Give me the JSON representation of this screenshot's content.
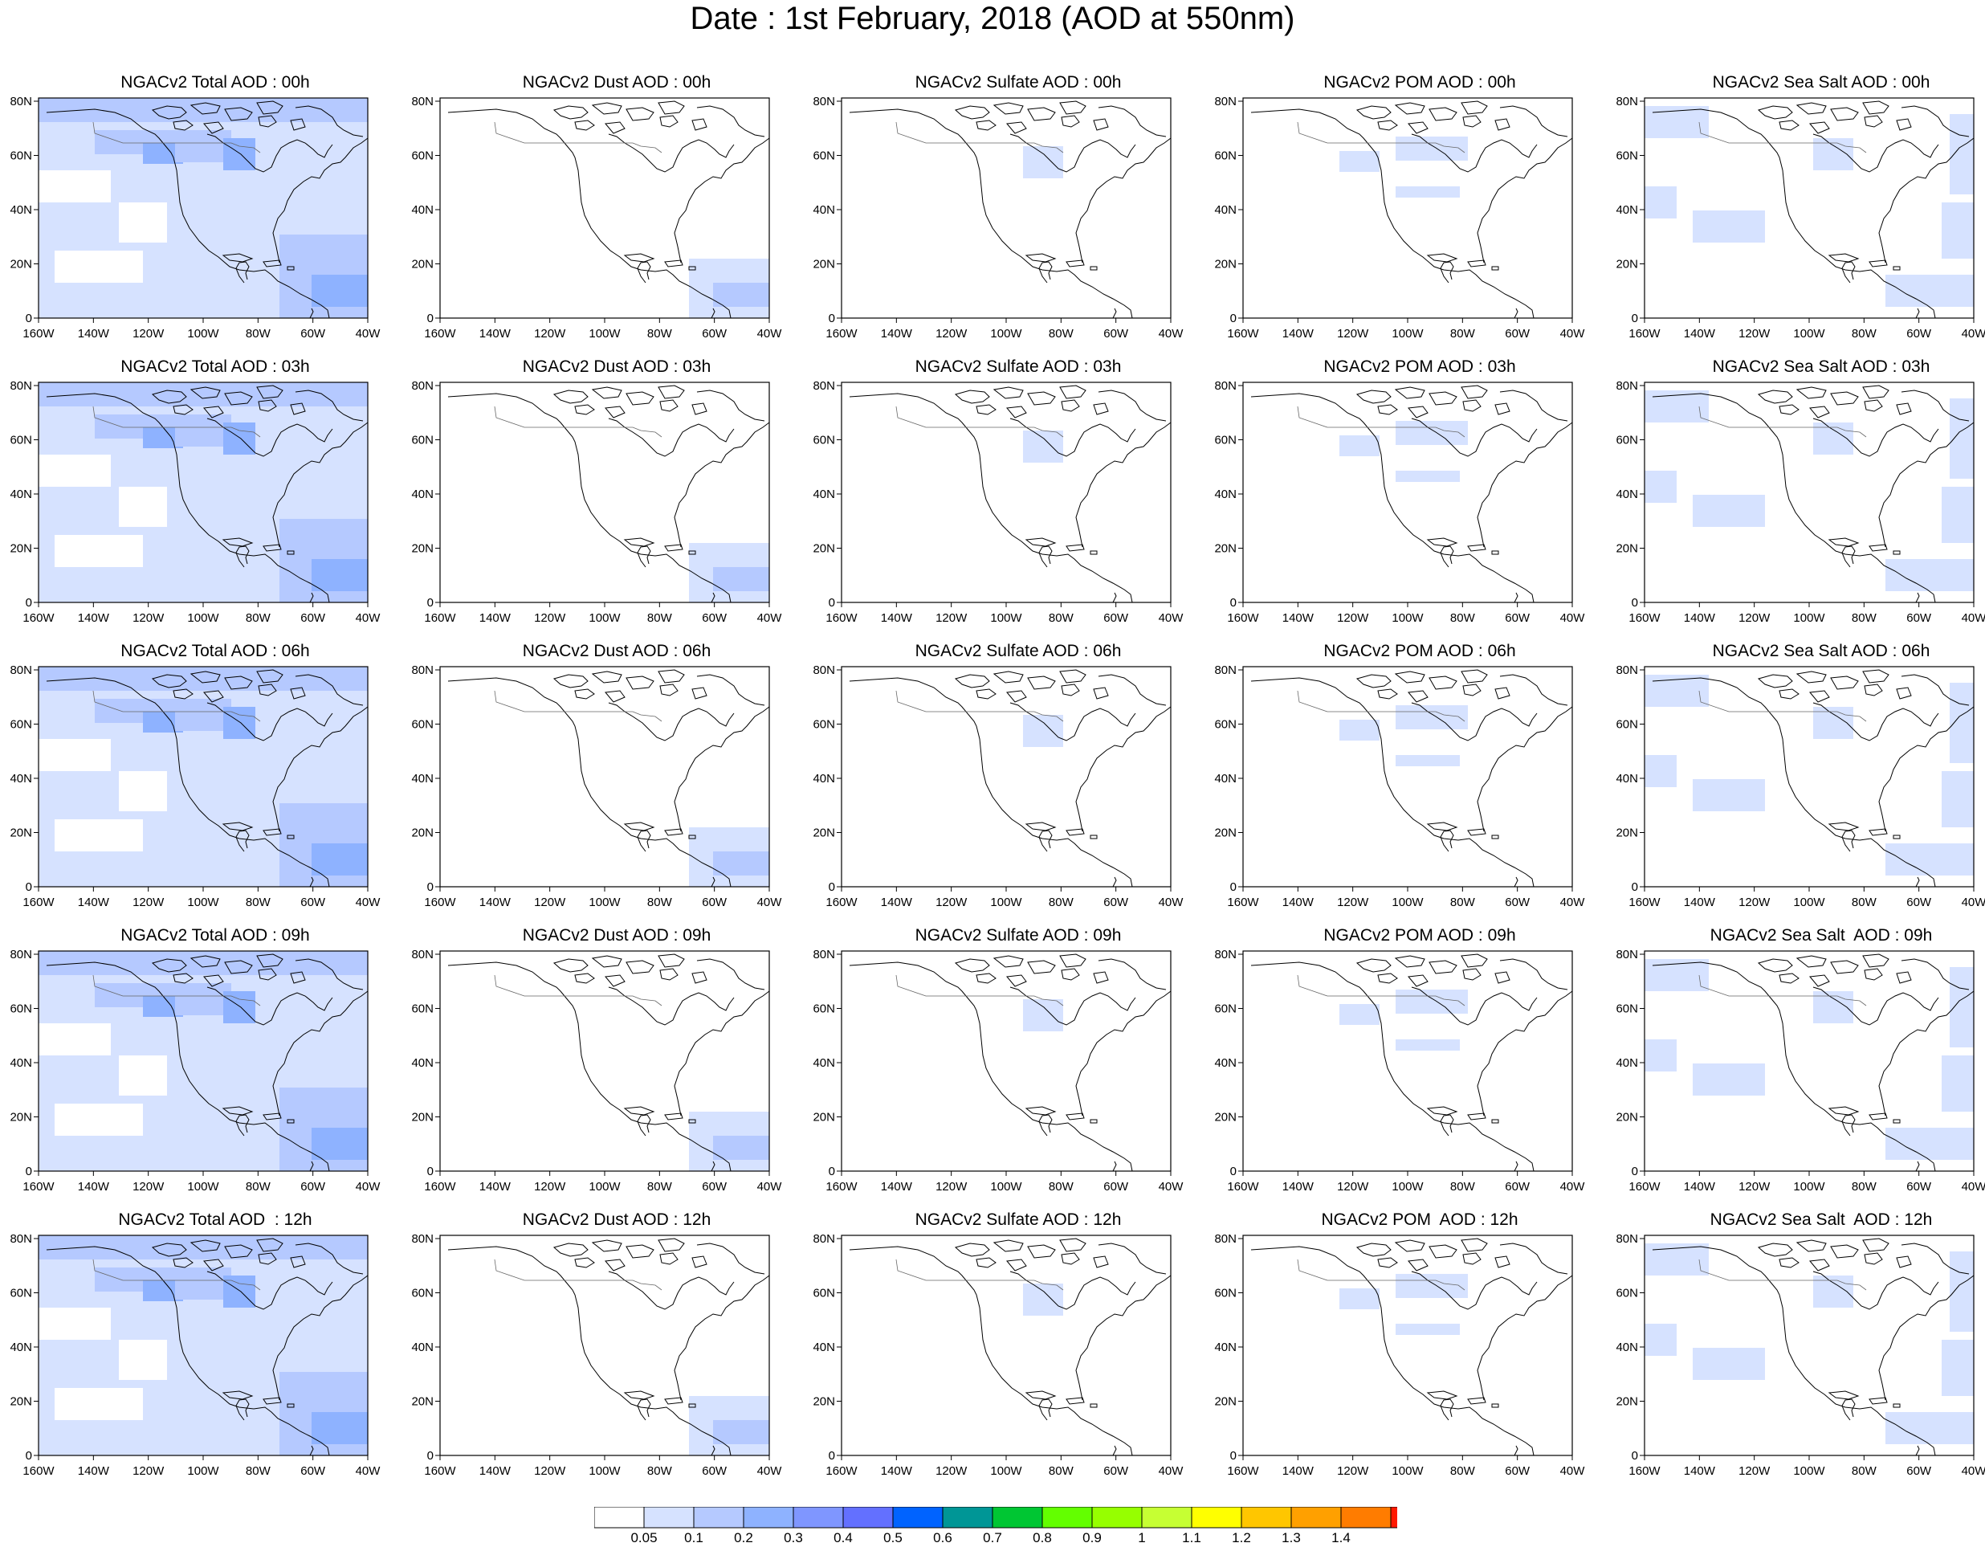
{
  "title": "Date : 1st February, 2018 (AOD at 550nm)",
  "panels": [
    [
      "NGACv2 Total AOD : 00h",
      "NGACv2 Dust AOD : 00h",
      "NGACv2 Sulfate AOD : 00h",
      "NGACv2 POM AOD : 00h",
      "NGACv2 Sea Salt AOD : 00h"
    ],
    [
      "NGACv2 Total AOD : 03h",
      "NGACv2 Dust AOD : 03h",
      "NGACv2 Sulfate AOD : 03h",
      "NGACv2 POM AOD : 03h",
      "NGACv2 Sea Salt AOD : 03h"
    ],
    [
      "NGACv2 Total AOD : 06h",
      "NGACv2 Dust AOD : 06h",
      "NGACv2 Sulfate AOD : 06h",
      "NGACv2 POM AOD : 06h",
      "NGACv2 Sea Salt AOD : 06h"
    ],
    [
      "NGACv2 Total AOD : 09h",
      "NGACv2 Dust AOD : 09h",
      "NGACv2 Sulfate AOD : 09h",
      "NGACv2 POM AOD : 09h",
      "NGACv2 Sea Salt  AOD : 09h"
    ],
    [
      "NGACv2 Total AOD  : 12h",
      "NGACv2 Dust AOD : 12h",
      "NGACv2 Sulfate AOD : 12h",
      "NGACv2 POM  AOD : 12h",
      "NGACv2 Sea Salt  AOD : 12h"
    ]
  ],
  "lat_ticks": [
    "80N",
    "60N",
    "40N",
    "20N",
    "0"
  ],
  "lon_ticks": [
    "160W",
    "140W",
    "120W",
    "100W",
    "80W",
    "60W",
    "40W"
  ],
  "colorbar": {
    "colors": [
      "#ffffff",
      "#d6e2ff",
      "#b5c9ff",
      "#8eb2ff",
      "#7f96ff",
      "#6370ff",
      "#0063ff",
      "#009696",
      "#00c633",
      "#63ff00",
      "#96ff00",
      "#c6ff33",
      "#ffff00",
      "#ffc600",
      "#ffa000",
      "#ff7c00",
      "#ff1900"
    ],
    "labels": [
      "0.05",
      "0.1",
      "0.2",
      "0.3",
      "0.4",
      "0.5",
      "0.6",
      "0.7",
      "0.8",
      "0.9",
      "1",
      "1.1",
      "1.2",
      "1.3",
      "1.4"
    ]
  }
}
